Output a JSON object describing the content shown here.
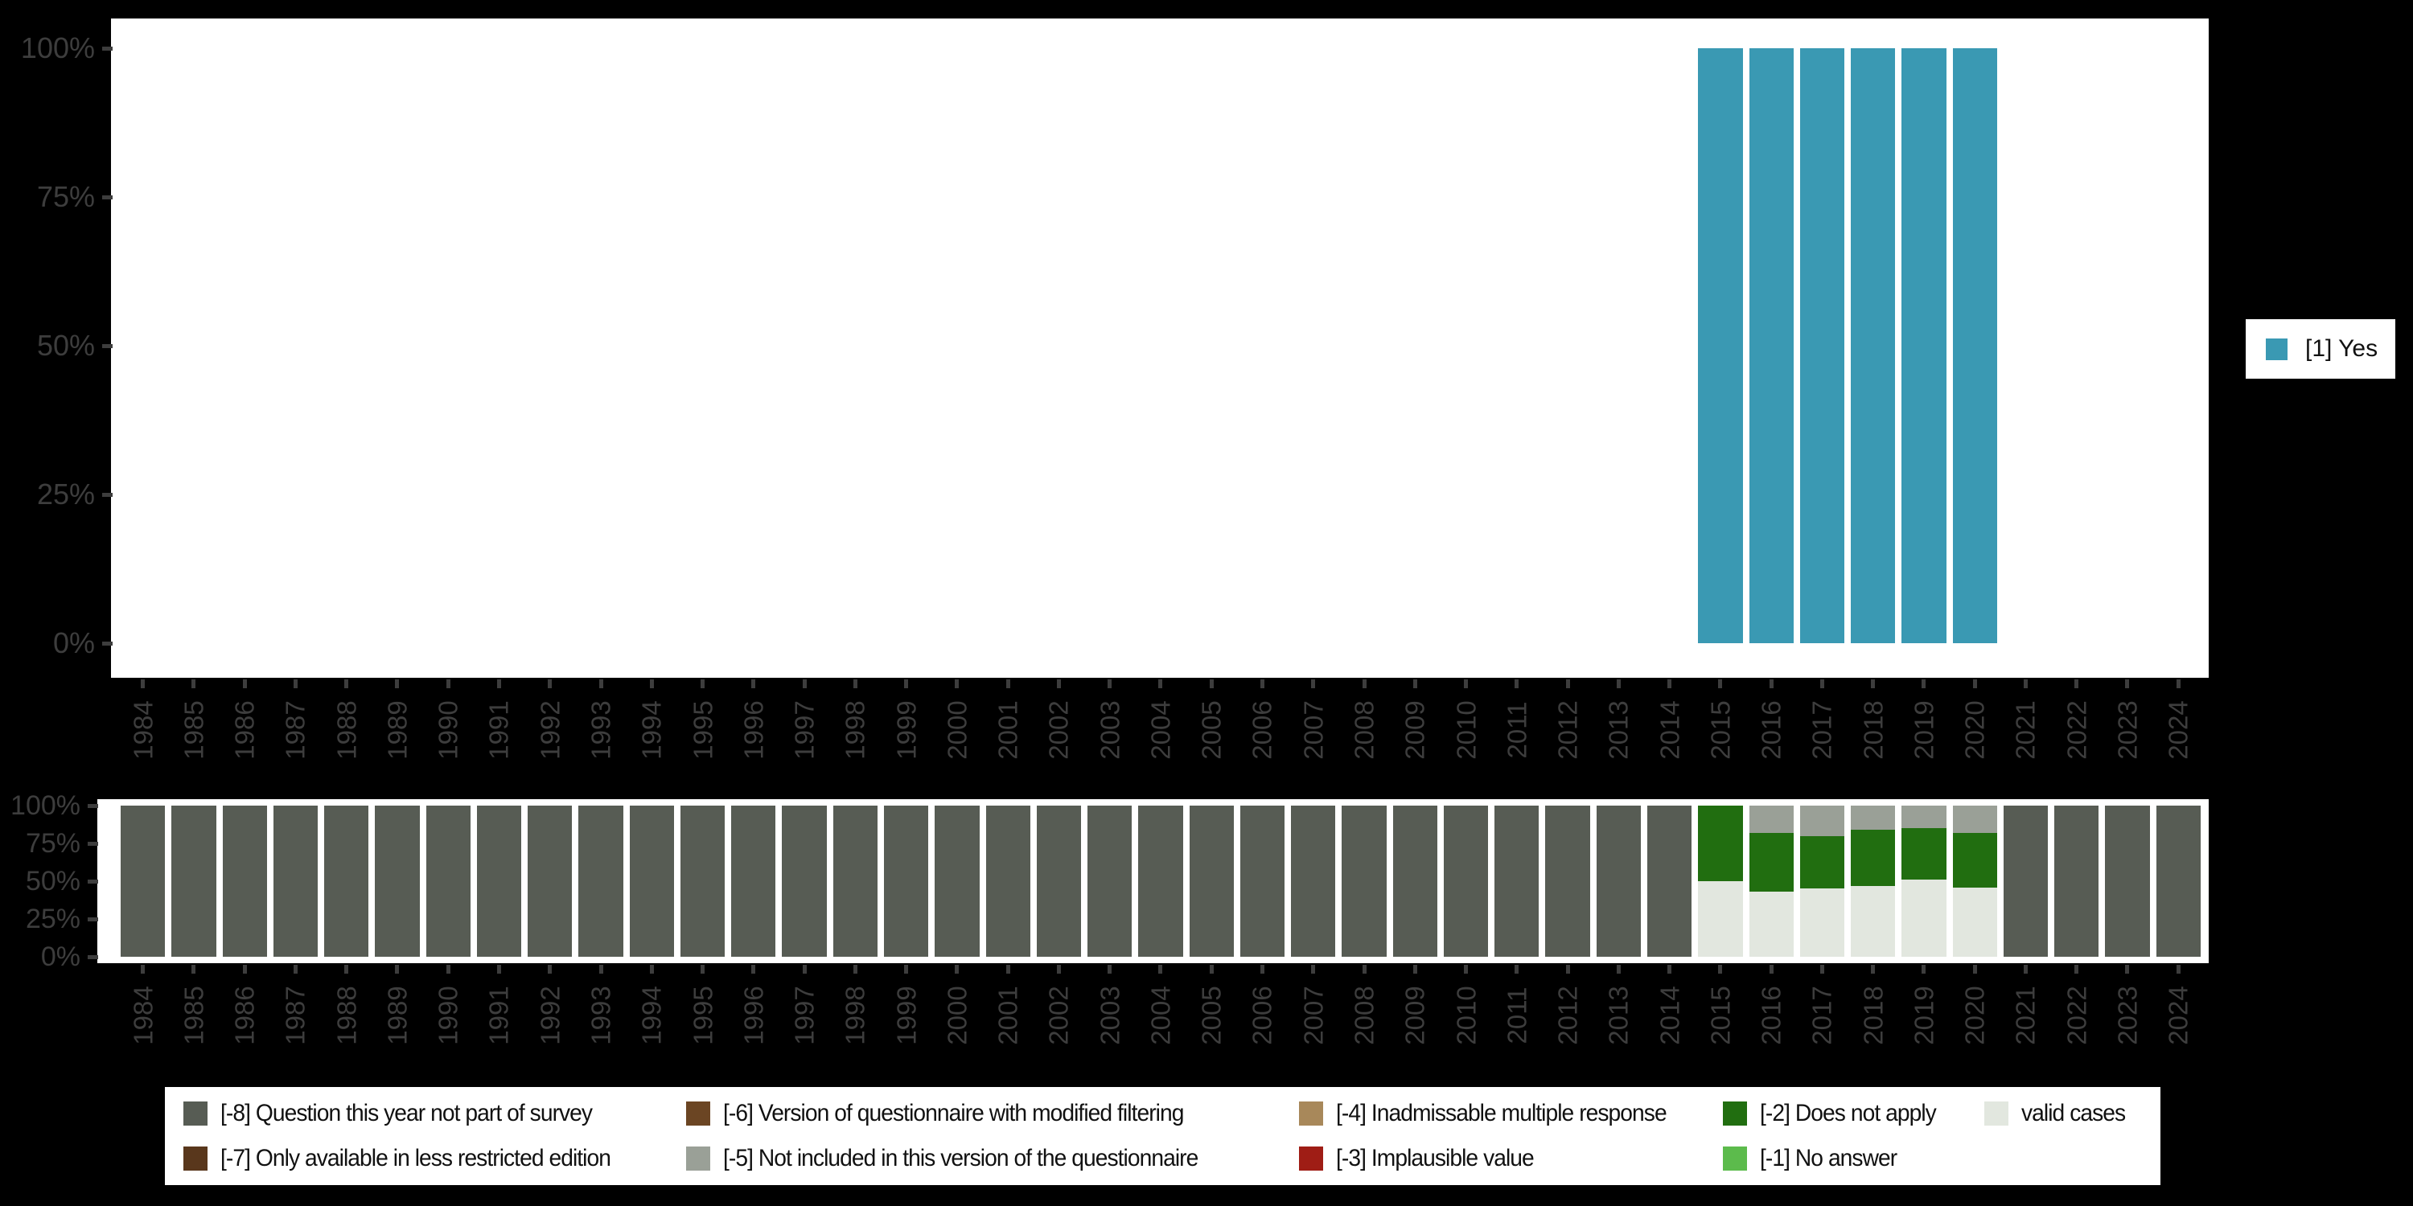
{
  "palette": {
    "yes": "#3a99b3",
    "miss8": "#575c54",
    "miss7": "#59371c",
    "miss6": "#6b4523",
    "miss5": "#9aa097",
    "miss4": "#a8885a",
    "miss3": "#9f1d15",
    "miss2": "#216e10",
    "miss1": "#5cbb4c",
    "valid": "#e2e7df",
    "background": "#000000",
    "plot_background": "#ffffff",
    "axis_text": "#3d3d3d",
    "legend_text": "#111111",
    "legend_background": "#ffffff"
  },
  "top_legend": {
    "entries": [
      {
        "label": "[1] Yes",
        "color_key": "yes"
      }
    ]
  },
  "bottom_legend": {
    "columns": [
      [
        {
          "label": "[-8] Question this year not part of survey",
          "color_key": "miss8"
        },
        {
          "label": "[-7] Only available in less restricted edition",
          "color_key": "miss7"
        }
      ],
      [
        {
          "label": "[-6] Version of questionnaire with modified filtering",
          "color_key": "miss6"
        },
        {
          "label": "[-5] Not included in this version of the questionnaire",
          "color_key": "miss5"
        }
      ],
      [
        {
          "label": "[-4] Inadmissable multiple response",
          "color_key": "miss4"
        },
        {
          "label": "[-3] Implausible value",
          "color_key": "miss3"
        }
      ],
      [
        {
          "label": "[-2] Does not apply",
          "color_key": "miss2"
        },
        {
          "label": "[-1] No answer",
          "color_key": "miss1"
        }
      ],
      [
        {
          "label": "valid cases",
          "color_key": "valid"
        }
      ]
    ]
  },
  "chart_data": [
    {
      "type": "bar",
      "stacked": true,
      "title": "",
      "xlabel": "",
      "ylabel": "",
      "ylim": [
        0,
        100
      ],
      "yticks": [
        "100%",
        "75%",
        "50%",
        "25%",
        "0%"
      ],
      "grid": false,
      "legend_position": "right",
      "legend": [
        {
          "label": "[1] Yes",
          "color_key": "yes"
        }
      ],
      "categories": [
        "1984",
        "1985",
        "1986",
        "1987",
        "1988",
        "1989",
        "1990",
        "1991",
        "1992",
        "1993",
        "1994",
        "1995",
        "1996",
        "1997",
        "1998",
        "1999",
        "2000",
        "2001",
        "2002",
        "2003",
        "2004",
        "2005",
        "2006",
        "2007",
        "2008",
        "2009",
        "2010",
        "2011",
        "2012",
        "2013",
        "2014",
        "2015",
        "2016",
        "2017",
        "2018",
        "2019",
        "2020",
        "2021",
        "2022",
        "2023",
        "2024"
      ],
      "series": [
        {
          "name": "[1] Yes",
          "color_key": "yes",
          "values": [
            0,
            0,
            0,
            0,
            0,
            0,
            0,
            0,
            0,
            0,
            0,
            0,
            0,
            0,
            0,
            0,
            0,
            0,
            0,
            0,
            0,
            0,
            0,
            0,
            0,
            0,
            0,
            0,
            0,
            0,
            0,
            100,
            100,
            100,
            100,
            100,
            100,
            0,
            0,
            0,
            0
          ]
        }
      ]
    },
    {
      "type": "bar",
      "stacked": true,
      "title": "",
      "xlabel": "",
      "ylabel": "",
      "ylim": [
        0,
        100
      ],
      "yticks": [
        "100%",
        "75%",
        "50%",
        "25%",
        "0%"
      ],
      "grid": false,
      "legend_position": "bottom",
      "categories": [
        "1984",
        "1985",
        "1986",
        "1987",
        "1988",
        "1989",
        "1990",
        "1991",
        "1992",
        "1993",
        "1994",
        "1995",
        "1996",
        "1997",
        "1998",
        "1999",
        "2000",
        "2001",
        "2002",
        "2003",
        "2004",
        "2005",
        "2006",
        "2007",
        "2008",
        "2009",
        "2010",
        "2011",
        "2012",
        "2013",
        "2014",
        "2015",
        "2016",
        "2017",
        "2018",
        "2019",
        "2020",
        "2021",
        "2022",
        "2023",
        "2024"
      ],
      "series": [
        {
          "name": "valid cases",
          "color_key": "valid",
          "values": [
            0,
            0,
            0,
            0,
            0,
            0,
            0,
            0,
            0,
            0,
            0,
            0,
            0,
            0,
            0,
            0,
            0,
            0,
            0,
            0,
            0,
            0,
            0,
            0,
            0,
            0,
            0,
            0,
            0,
            0,
            0,
            50,
            43,
            45,
            47,
            51,
            46,
            0,
            0,
            0,
            0
          ]
        },
        {
          "name": "[-2] Does not apply",
          "color_key": "miss2",
          "values": [
            0,
            0,
            0,
            0,
            0,
            0,
            0,
            0,
            0,
            0,
            0,
            0,
            0,
            0,
            0,
            0,
            0,
            0,
            0,
            0,
            0,
            0,
            0,
            0,
            0,
            0,
            0,
            0,
            0,
            0,
            0,
            50,
            39,
            35,
            37,
            34,
            36,
            0,
            0,
            0,
            0
          ]
        },
        {
          "name": "[-5] Not included in this version of the questionnaire",
          "color_key": "miss5",
          "values": [
            0,
            0,
            0,
            0,
            0,
            0,
            0,
            0,
            0,
            0,
            0,
            0,
            0,
            0,
            0,
            0,
            0,
            0,
            0,
            0,
            0,
            0,
            0,
            0,
            0,
            0,
            0,
            0,
            0,
            0,
            0,
            0,
            18,
            20,
            16,
            15,
            18,
            0,
            0,
            0,
            0
          ]
        },
        {
          "name": "[-8] Question this year not part of survey",
          "color_key": "miss8",
          "values": [
            100,
            100,
            100,
            100,
            100,
            100,
            100,
            100,
            100,
            100,
            100,
            100,
            100,
            100,
            100,
            100,
            100,
            100,
            100,
            100,
            100,
            100,
            100,
            100,
            100,
            100,
            100,
            100,
            100,
            100,
            100,
            0,
            0,
            0,
            0,
            0,
            0,
            100,
            100,
            100,
            100
          ]
        }
      ]
    }
  ]
}
